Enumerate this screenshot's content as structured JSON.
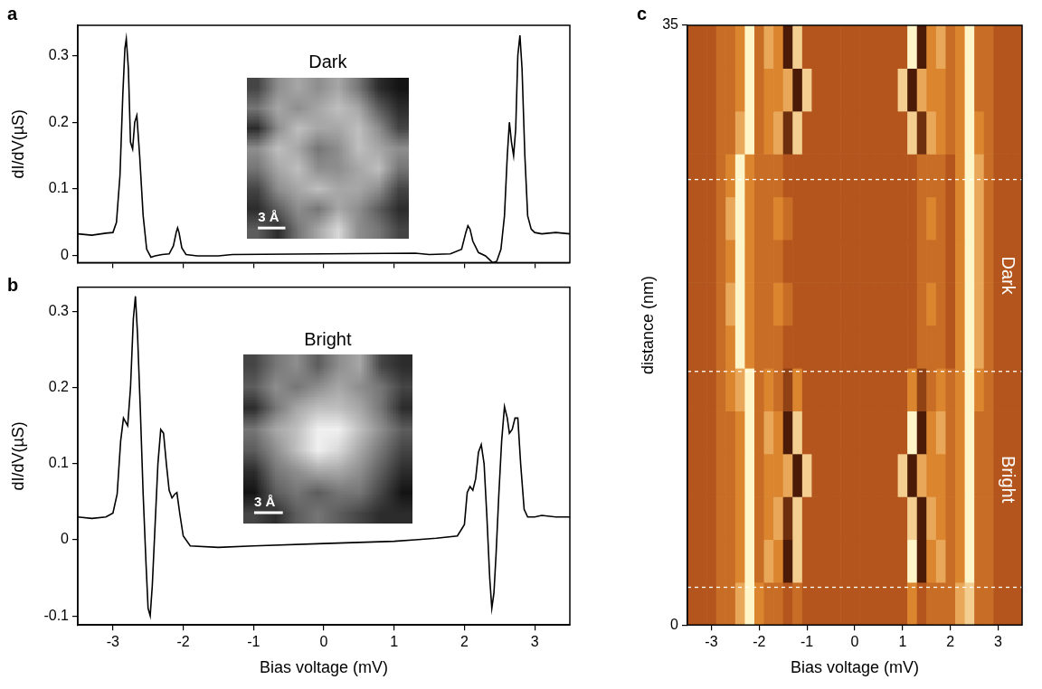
{
  "chart_data": [
    {
      "panel": "a",
      "type": "line",
      "y_label": "dI/dV(µS)",
      "color": "#000000",
      "x": [
        -3.5,
        -3.3,
        -3.1,
        -3.0,
        -2.95,
        -2.9,
        -2.86,
        -2.83,
        -2.81,
        -2.78,
        -2.75,
        -2.72,
        -2.69,
        -2.66,
        -2.62,
        -2.57,
        -2.52,
        -2.46,
        -2.4,
        -2.3,
        -2.2,
        -2.14,
        -2.1,
        -2.08,
        -2.06,
        -2.02,
        -1.96,
        -1.8,
        -1.5,
        -1.3,
        0,
        1.3,
        1.5,
        1.8,
        1.96,
        2.02,
        2.05,
        2.08,
        2.12,
        2.2,
        2.3,
        2.4,
        2.46,
        2.52,
        2.57,
        2.61,
        2.64,
        2.67,
        2.7,
        2.73,
        2.76,
        2.79,
        2.82,
        2.86,
        2.9,
        2.95,
        3.0,
        3.1,
        3.3,
        3.5
      ],
      "values": [
        0.033,
        0.031,
        0.034,
        0.035,
        0.05,
        0.12,
        0.24,
        0.31,
        0.325,
        0.28,
        0.17,
        0.16,
        0.2,
        0.21,
        0.15,
        0.06,
        0.01,
        -0.002,
        0.0,
        0.002,
        0.003,
        0.015,
        0.035,
        0.042,
        0.035,
        0.012,
        0.002,
        0.0,
        0.0,
        0.002,
        0.003,
        0.004,
        0.002,
        0.003,
        0.01,
        0.035,
        0.045,
        0.04,
        0.022,
        0.005,
        0.0,
        -0.01,
        -0.008,
        0.01,
        0.06,
        0.15,
        0.2,
        0.17,
        0.15,
        0.19,
        0.3,
        0.33,
        0.28,
        0.15,
        0.06,
        0.04,
        0.035,
        0.033,
        0.035,
        0.033
      ],
      "xlim": [
        -3.5,
        3.5
      ],
      "xticks": [
        -3,
        -2,
        -1,
        0,
        1,
        2,
        3
      ],
      "ylim": [
        -0.01,
        0.345
      ],
      "yticks": [
        0,
        0.1,
        0.2,
        0.3
      ],
      "tick_labels": "y",
      "grid": false,
      "inset": {
        "title": "Dark",
        "scale_bar": "3 Å",
        "gray_range": [
          0,
          9
        ],
        "pixels": [
          [
            2,
            5,
            6,
            5,
            6,
            4,
            1,
            0
          ],
          [
            4,
            6,
            5,
            6,
            7,
            6,
            3,
            1
          ],
          [
            1,
            5,
            7,
            6,
            6,
            7,
            5,
            2
          ],
          [
            5,
            7,
            6,
            4,
            5,
            7,
            6,
            5
          ],
          [
            4,
            6,
            7,
            5,
            5,
            6,
            7,
            4
          ],
          [
            2,
            5,
            6,
            7,
            6,
            6,
            5,
            2
          ],
          [
            1,
            3,
            5,
            4,
            6,
            5,
            3,
            1
          ],
          [
            3,
            1,
            4,
            6,
            8,
            5,
            4,
            2
          ]
        ]
      }
    },
    {
      "panel": "b",
      "type": "line",
      "x_label": "Bias voltage (mV)",
      "y_label": "dI/dV(µS)",
      "color": "#000000",
      "x": [
        -3.5,
        -3.3,
        -3.1,
        -3.0,
        -2.94,
        -2.89,
        -2.85,
        -2.82,
        -2.79,
        -2.75,
        -2.71,
        -2.68,
        -2.65,
        -2.61,
        -2.57,
        -2.53,
        -2.5,
        -2.47,
        -2.44,
        -2.4,
        -2.36,
        -2.32,
        -2.28,
        -2.24,
        -2.2,
        -2.16,
        -2.12,
        -2.09,
        -2.05,
        -2.0,
        -1.9,
        -1.5,
        -1.0,
        0,
        1.0,
        1.3,
        1.6,
        1.9,
        2.0,
        2.04,
        2.08,
        2.12,
        2.16,
        2.2,
        2.24,
        2.28,
        2.32,
        2.36,
        2.39,
        2.42,
        2.45,
        2.49,
        2.53,
        2.57,
        2.61,
        2.64,
        2.68,
        2.72,
        2.76,
        2.8,
        2.85,
        2.9,
        3.0,
        3.1,
        3.3,
        3.5
      ],
      "values": [
        0.03,
        0.028,
        0.03,
        0.035,
        0.06,
        0.13,
        0.16,
        0.155,
        0.15,
        0.2,
        0.29,
        0.32,
        0.27,
        0.17,
        0.06,
        -0.03,
        -0.09,
        -0.1,
        -0.06,
        0.02,
        0.1,
        0.145,
        0.14,
        0.1,
        0.065,
        0.055,
        0.06,
        0.062,
        0.035,
        0.005,
        -0.008,
        -0.01,
        -0.008,
        -0.005,
        -0.002,
        0.0,
        0.002,
        0.005,
        0.02,
        0.062,
        0.07,
        0.065,
        0.08,
        0.115,
        0.125,
        0.1,
        0.03,
        -0.05,
        -0.09,
        -0.07,
        -0.02,
        0.06,
        0.13,
        0.175,
        0.16,
        0.14,
        0.145,
        0.16,
        0.16,
        0.1,
        0.04,
        0.03,
        0.03,
        0.032,
        0.03,
        0.03
      ],
      "xlim": [
        -3.5,
        3.5
      ],
      "xticks": [
        -3,
        -2,
        -1,
        0,
        1,
        2,
        3
      ],
      "ylim": [
        -0.112,
        0.332
      ],
      "yticks": [
        -0.1,
        0,
        0.1,
        0.2,
        0.3
      ],
      "grid": false,
      "inset": {
        "title": "Bright",
        "scale_bar": "3 Å",
        "gray_range": [
          0,
          9
        ],
        "pixels": [
          [
            2,
            4,
            5,
            3,
            5,
            6,
            2,
            1
          ],
          [
            3,
            5,
            4,
            5,
            6,
            5,
            4,
            2
          ],
          [
            1,
            4,
            6,
            7,
            7,
            6,
            4,
            1
          ],
          [
            4,
            6,
            7,
            9,
            9,
            7,
            5,
            3
          ],
          [
            3,
            5,
            7,
            9,
            8,
            6,
            4,
            2
          ],
          [
            1,
            4,
            5,
            6,
            6,
            5,
            3,
            1
          ],
          [
            0,
            3,
            4,
            3,
            4,
            4,
            2,
            0
          ],
          [
            2,
            1,
            3,
            4,
            3,
            2,
            1,
            1
          ]
        ]
      }
    },
    {
      "panel": "c",
      "type": "heatmap",
      "x_label": "Bias voltage (mV)",
      "y_label": "distance (nm)",
      "x": [
        -3.4,
        -3.2,
        -3.0,
        -2.8,
        -2.6,
        -2.4,
        -2.2,
        -2.0,
        -1.8,
        -1.6,
        -1.4,
        -1.2,
        -1.0,
        -0.8,
        -0.6,
        -0.4,
        -0.2,
        0,
        0.2,
        0.4,
        0.6,
        0.8,
        1.0,
        1.2,
        1.4,
        1.6,
        1.8,
        2.0,
        2.2,
        2.4,
        2.6,
        2.8,
        3.0,
        3.2,
        3.4
      ],
      "y": [
        1.25,
        3.75,
        6.25,
        8.75,
        11.25,
        13.75,
        16.25,
        18.75,
        21.25,
        23.75,
        26.25,
        28.75,
        31.25,
        33.75
      ],
      "cells": [
        [
          4,
          4,
          4,
          5,
          5,
          7,
          9,
          6,
          5,
          5,
          4,
          5,
          4,
          4,
          4,
          4,
          4,
          4,
          4,
          4,
          4,
          4,
          4,
          6,
          4,
          5,
          5,
          5,
          7,
          8,
          5,
          5,
          4,
          4,
          4
        ],
        [
          4,
          4,
          4,
          5,
          5,
          6,
          9,
          5,
          7,
          6,
          1,
          8,
          4,
          4,
          4,
          4,
          4,
          4,
          4,
          4,
          4,
          4,
          4,
          9,
          1,
          6,
          7,
          5,
          6,
          9,
          5,
          5,
          4,
          4,
          4
        ],
        [
          4,
          4,
          4,
          5,
          5,
          6,
          9,
          5,
          6,
          7,
          2,
          8,
          4,
          4,
          4,
          4,
          4,
          4,
          4,
          4,
          4,
          4,
          4,
          8,
          1,
          7,
          6,
          5,
          6,
          9,
          5,
          5,
          4,
          4,
          4
        ],
        [
          4,
          4,
          4,
          5,
          5,
          6,
          9,
          5,
          6,
          6,
          7,
          1,
          8,
          4,
          4,
          4,
          4,
          4,
          4,
          4,
          4,
          4,
          8,
          1,
          7,
          6,
          6,
          5,
          6,
          9,
          5,
          5,
          4,
          4,
          4
        ],
        [
          4,
          4,
          4,
          5,
          5,
          6,
          9,
          5,
          7,
          6,
          1,
          8,
          4,
          4,
          4,
          4,
          4,
          4,
          4,
          4,
          4,
          4,
          4,
          9,
          1,
          6,
          7,
          5,
          6,
          9,
          5,
          5,
          4,
          4,
          4
        ],
        [
          4,
          4,
          4,
          5,
          6,
          7,
          9,
          5,
          6,
          5,
          3,
          6,
          4,
          4,
          4,
          4,
          4,
          4,
          4,
          4,
          4,
          4,
          4,
          6,
          3,
          5,
          6,
          5,
          6,
          9,
          6,
          5,
          4,
          4,
          4
        ],
        [
          4,
          4,
          4,
          5,
          6,
          9,
          6,
          5,
          5,
          5,
          4,
          4,
          4,
          4,
          4,
          4,
          4,
          4,
          4,
          4,
          4,
          4,
          4,
          4,
          5,
          5,
          5,
          4,
          6,
          9,
          7,
          5,
          4,
          4,
          4
        ],
        [
          4,
          4,
          4,
          5,
          7,
          9,
          6,
          5,
          5,
          6,
          5,
          4,
          4,
          4,
          4,
          4,
          4,
          4,
          4,
          4,
          4,
          4,
          4,
          4,
          5,
          6,
          5,
          4,
          6,
          9,
          7,
          5,
          4,
          4,
          4
        ],
        [
          4,
          4,
          4,
          5,
          6,
          9,
          6,
          5,
          5,
          5,
          4,
          4,
          4,
          4,
          4,
          4,
          4,
          4,
          4,
          4,
          4,
          4,
          4,
          4,
          5,
          5,
          5,
          4,
          6,
          9,
          7,
          5,
          4,
          4,
          4
        ],
        [
          4,
          4,
          4,
          5,
          7,
          9,
          6,
          5,
          5,
          6,
          5,
          4,
          4,
          4,
          4,
          4,
          4,
          4,
          4,
          4,
          4,
          4,
          4,
          4,
          5,
          6,
          5,
          4,
          6,
          9,
          7,
          5,
          4,
          4,
          4
        ],
        [
          4,
          4,
          4,
          5,
          6,
          9,
          6,
          5,
          5,
          5,
          4,
          4,
          4,
          4,
          4,
          4,
          4,
          4,
          4,
          4,
          4,
          4,
          4,
          4,
          5,
          5,
          5,
          4,
          6,
          9,
          7,
          5,
          4,
          4,
          4
        ],
        [
          4,
          4,
          4,
          5,
          5,
          7,
          9,
          5,
          6,
          7,
          2,
          8,
          4,
          4,
          4,
          4,
          4,
          4,
          4,
          4,
          4,
          4,
          4,
          8,
          2,
          7,
          6,
          5,
          6,
          9,
          6,
          5,
          4,
          4,
          4
        ],
        [
          4,
          4,
          4,
          5,
          5,
          6,
          9,
          5,
          6,
          6,
          7,
          1,
          8,
          4,
          4,
          4,
          4,
          4,
          4,
          4,
          4,
          4,
          8,
          1,
          7,
          6,
          6,
          5,
          6,
          9,
          5,
          5,
          4,
          4,
          4
        ],
        [
          4,
          4,
          4,
          5,
          5,
          6,
          9,
          5,
          7,
          6,
          1,
          8,
          4,
          4,
          4,
          4,
          4,
          4,
          4,
          4,
          4,
          4,
          4,
          9,
          1,
          6,
          7,
          5,
          6,
          9,
          5,
          5,
          4,
          4,
          4
        ]
      ],
      "clim": [
        0,
        9
      ],
      "xlim": [
        -3.5,
        3.5
      ],
      "xticks": [
        -3,
        -2,
        -1,
        0,
        1,
        2,
        3
      ],
      "ylim": [
        0,
        35
      ],
      "yticks": [
        0,
        35
      ],
      "grid": false,
      "regions": [
        {
          "label": "Bright",
          "from": 2.2,
          "to": 14.8
        },
        {
          "label": "Dark",
          "from": 14.8,
          "to": 26.0
        }
      ]
    }
  ]
}
